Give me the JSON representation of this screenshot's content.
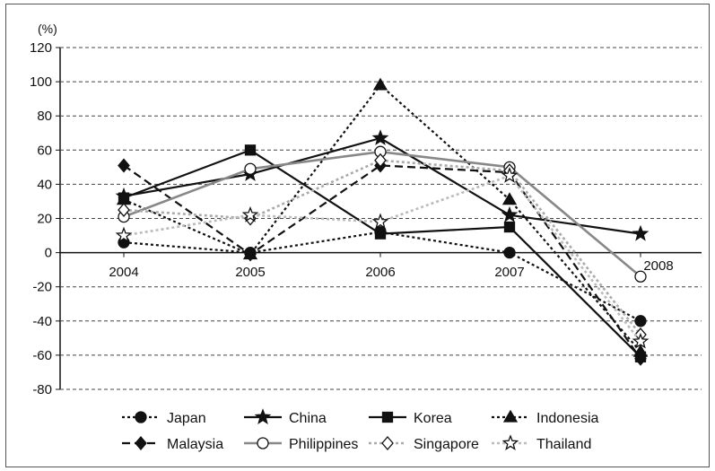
{
  "chart_data": {
    "type": "line",
    "title": "",
    "ylabel": "(%)",
    "xlabel": "",
    "x": [
      "2004",
      "2005",
      "2006",
      "2007",
      "2008"
    ],
    "ylim": [
      -80,
      120
    ],
    "yticks": [
      120,
      100,
      80,
      60,
      40,
      20,
      0,
      -20,
      -40,
      -60,
      -80
    ],
    "grid": "horizontal dashed",
    "legend_position": "bottom",
    "series": [
      {
        "name": "Japan",
        "values": [
          6,
          0,
          12,
          0,
          -40
        ],
        "color": "#111111",
        "dash": "dotted",
        "marker": "circle-filled"
      },
      {
        "name": "China",
        "values": [
          33,
          46,
          67,
          22,
          11
        ],
        "color": "#111111",
        "dash": "solid",
        "marker": "star-filled"
      },
      {
        "name": "Korea",
        "values": [
          32,
          60,
          11,
          15,
          -61
        ],
        "color": "#111111",
        "dash": "solid",
        "marker": "square-filled"
      },
      {
        "name": "Indonesia",
        "values": [
          31,
          -1,
          98,
          31,
          -58
        ],
        "color": "#111111",
        "dash": "dotted",
        "marker": "triangle-filled"
      },
      {
        "name": "Malaysia",
        "values": [
          51,
          -1,
          51,
          47,
          -62
        ],
        "color": "#111111",
        "dash": "dashed",
        "marker": "diamond-filled"
      },
      {
        "name": "Philippines",
        "values": [
          21,
          49,
          59,
          50,
          -14
        ],
        "color": "#888888",
        "dash": "solid",
        "marker": "circle-open"
      },
      {
        "name": "Singapore",
        "values": [
          25,
          20,
          54,
          48,
          -48
        ],
        "color": "#aaaaaa",
        "dash": "dotted",
        "marker": "diamond-open"
      },
      {
        "name": "Thailand",
        "values": [
          10,
          22,
          18,
          45,
          -52
        ],
        "color": "#bbbbbb",
        "dash": "dotted",
        "marker": "star-open"
      }
    ]
  }
}
